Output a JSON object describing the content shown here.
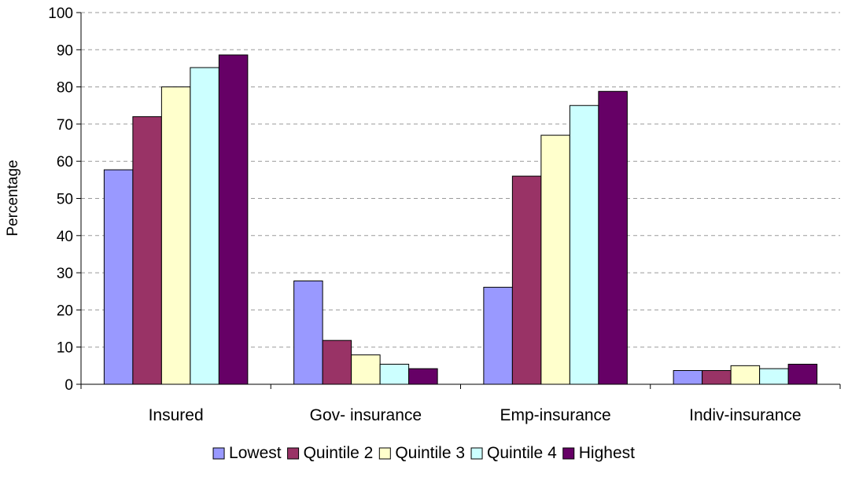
{
  "chart_data": {
    "type": "bar",
    "title": "",
    "xlabel": "",
    "ylabel": "Percentage",
    "ylim": [
      0,
      100
    ],
    "yticks": [
      0,
      10,
      20,
      30,
      40,
      50,
      60,
      70,
      80,
      90,
      100
    ],
    "grid": "horizontal-dashed",
    "legend_position": "bottom",
    "categories": [
      "Insured",
      "Gov- insurance",
      "Emp-insurance",
      "Indiv-insurance"
    ],
    "series": [
      {
        "name": "Lowest",
        "color": "#9999ff",
        "values": [
          57.7,
          27.8,
          26.1,
          3.7
        ]
      },
      {
        "name": "Quintile 2",
        "color": "#993366",
        "values": [
          72.0,
          11.8,
          56.0,
          3.7
        ]
      },
      {
        "name": "Quintile 3",
        "color": "#ffffcc",
        "values": [
          80.0,
          7.9,
          67.0,
          5.0
        ]
      },
      {
        "name": "Quintile 4",
        "color": "#ccffff",
        "values": [
          85.2,
          5.4,
          75.0,
          4.2
        ]
      },
      {
        "name": "Highest",
        "color": "#660066",
        "values": [
          88.6,
          4.2,
          78.8,
          5.4
        ]
      }
    ]
  }
}
